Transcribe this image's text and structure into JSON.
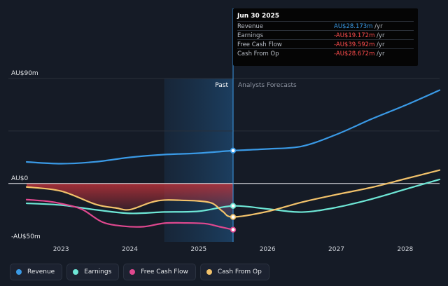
{
  "chart_data": {
    "type": "line",
    "ylim": [
      -50,
      90
    ],
    "y_tick_labels": [
      {
        "value": 90,
        "label": "AU$90m"
      },
      {
        "value": 0,
        "label": "AU$0"
      },
      {
        "value": -50,
        "label": "-AU$50m"
      }
    ],
    "x_range": [
      2022.5,
      2028.5
    ],
    "x_ticks": [
      2023,
      2024,
      2025,
      2026,
      2027,
      2028
    ],
    "divider_x": 2025.5,
    "highlight_band": [
      2024.5,
      2025.5
    ],
    "sections": {
      "past": "Past",
      "forecast": "Analysts Forecasts"
    },
    "series": [
      {
        "name": "Revenue",
        "color": "#3a9ae6",
        "x": [
          2022.5,
          2023.0,
          2023.5,
          2024.0,
          2024.5,
          2025.0,
          2025.5,
          2026.0,
          2026.5,
          2027.0,
          2027.5,
          2028.0,
          2028.5
        ],
        "y": [
          18.5,
          17.0,
          18.6,
          22.4,
          24.8,
          26.0,
          28.2,
          29.6,
          31.9,
          42.0,
          55.0,
          67.0,
          80.0
        ]
      },
      {
        "name": "Earnings",
        "color": "#6ee7d6",
        "x": [
          2022.5,
          2023.0,
          2023.5,
          2024.0,
          2024.5,
          2025.0,
          2025.5,
          2026.0,
          2026.5,
          2027.0,
          2027.5,
          2028.0,
          2028.5
        ],
        "y": [
          -17.0,
          -18.5,
          -22.5,
          -25.6,
          -24.4,
          -23.8,
          -19.2,
          -21.8,
          -24.5,
          -20.5,
          -13.5,
          -5.0,
          3.5
        ]
      },
      {
        "name": "Free Cash Flow",
        "color": "#e0488f",
        "x": [
          2022.5,
          2022.8,
          2023.0,
          2023.3,
          2023.6,
          2023.9,
          2024.2,
          2024.5,
          2024.8,
          2025.1,
          2025.3,
          2025.5
        ],
        "y": [
          -13.8,
          -15.2,
          -17.2,
          -22.0,
          -33.0,
          -36.5,
          -37.0,
          -34.0,
          -33.8,
          -34.4,
          -37.0,
          -39.6
        ]
      },
      {
        "name": "Cash From Op",
        "color": "#f2c26b",
        "x": [
          2022.5,
          2023.0,
          2023.5,
          2023.8,
          2024.0,
          2024.3,
          2024.5,
          2024.8,
          2025.0,
          2025.2,
          2025.35,
          2025.5,
          2026.0,
          2026.5,
          2027.0,
          2027.5,
          2028.0,
          2028.5
        ],
        "y": [
          -3.0,
          -6.5,
          -17.8,
          -21.0,
          -22.4,
          -16.3,
          -14.2,
          -14.5,
          -15.0,
          -17.0,
          -24.0,
          -28.7,
          -24.0,
          -16.0,
          -9.5,
          -3.5,
          4.0,
          11.5
        ]
      }
    ]
  },
  "tooltip": {
    "date": "Jun 30 2025",
    "rows": [
      {
        "label": "Revenue",
        "value": "AU$28.173m",
        "unit": " /yr",
        "color": "#3a9ae6"
      },
      {
        "label": "Earnings",
        "value": "-AU$19.172m",
        "unit": " /yr",
        "color": "#ff4d4d"
      },
      {
        "label": "Free Cash Flow",
        "value": "-AU$39.592m",
        "unit": " /yr",
        "color": "#ff4d4d"
      },
      {
        "label": "Cash From Op",
        "value": "-AU$28.672m",
        "unit": " /yr",
        "color": "#ff4d4d"
      }
    ]
  },
  "legend": [
    {
      "label": "Revenue",
      "color": "#3a9ae6"
    },
    {
      "label": "Earnings",
      "color": "#6ee7d6"
    },
    {
      "label": "Free Cash Flow",
      "color": "#e0488f"
    },
    {
      "label": "Cash From Op",
      "color": "#f2c26b"
    }
  ]
}
